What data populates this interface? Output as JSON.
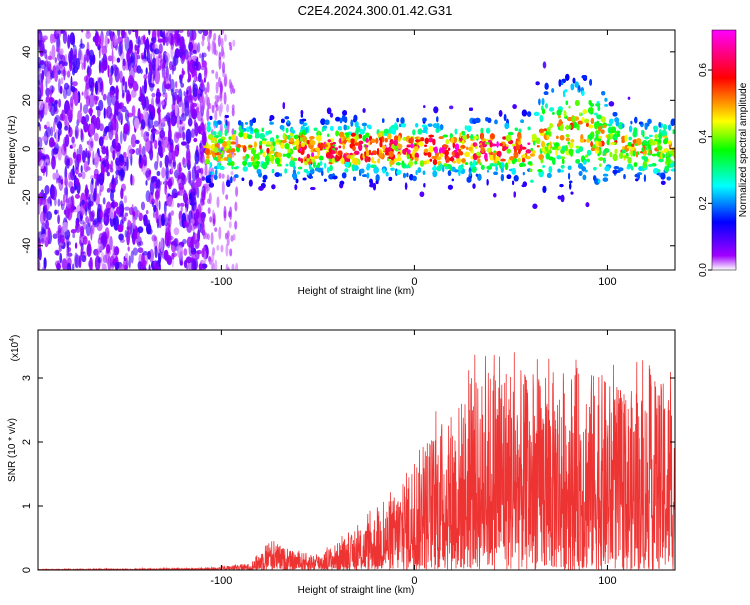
{
  "title": "C2E4.2024.300.01.42.G31",
  "chart_data": [
    {
      "type": "heatmap",
      "name": "spectrogram",
      "xlabel": "Height of straight line (km)",
      "ylabel": "Frequency (Hz)",
      "xlim": [
        -195,
        135
      ],
      "ylim": [
        -50,
        49
      ],
      "xticks": [
        -100,
        0,
        100
      ],
      "yticks": [
        -40,
        -20,
        0,
        20,
        40
      ],
      "colorbar": {
        "label": "Normalized spectral amplitude",
        "range": [
          0,
          0.72
        ],
        "ticks": [
          "0.0",
          "0.2",
          "0.4",
          "0.6"
        ],
        "tick_values": [
          0.0,
          0.2,
          0.4,
          0.6
        ],
        "colors": [
          "#ffffff",
          "#a000ff",
          "#0000ff",
          "#00ffff",
          "#00ff00",
          "#ffff00",
          "#ff0000",
          "#ff00ff"
        ]
      },
      "description_regions": [
        {
          "x_range": [
            -195,
            -110
          ],
          "freq_spread": 49,
          "level": "low"
        },
        {
          "x_range": [
            -110,
            135
          ],
          "freq_center": 0,
          "freq_spread": 12,
          "level": "mid-high"
        }
      ]
    },
    {
      "type": "line",
      "name": "snr",
      "xlabel": "Height of straight line (km)",
      "ylabel": "SNR (10 * v/v)",
      "scale_label": "(x10",
      "scale_exp": "4",
      "scale_close": ")",
      "xlim": [
        -195,
        135
      ],
      "ylim": [
        0,
        3.75
      ],
      "xticks": [
        -100,
        0,
        100
      ],
      "yticks": [
        0,
        1,
        2,
        3
      ],
      "color": "#ee3333",
      "envelope": [
        {
          "x": -195,
          "y": 0.01
        },
        {
          "x": -110,
          "y": 0.03
        },
        {
          "x": -85,
          "y": 0.1
        },
        {
          "x": -75,
          "y": 0.5
        },
        {
          "x": -65,
          "y": 0.3
        },
        {
          "x": -50,
          "y": 0.25
        },
        {
          "x": -30,
          "y": 0.6
        },
        {
          "x": -10,
          "y": 1.2
        },
        {
          "x": 0,
          "y": 1.8
        },
        {
          "x": 15,
          "y": 2.4
        },
        {
          "x": 30,
          "y": 2.9
        },
        {
          "x": 45,
          "y": 3.4
        },
        {
          "x": 60,
          "y": 3.0
        },
        {
          "x": 80,
          "y": 3.2
        },
        {
          "x": 95,
          "y": 3.1
        },
        {
          "x": 110,
          "y": 2.8
        },
        {
          "x": 135,
          "y": 3.0
        }
      ]
    }
  ]
}
